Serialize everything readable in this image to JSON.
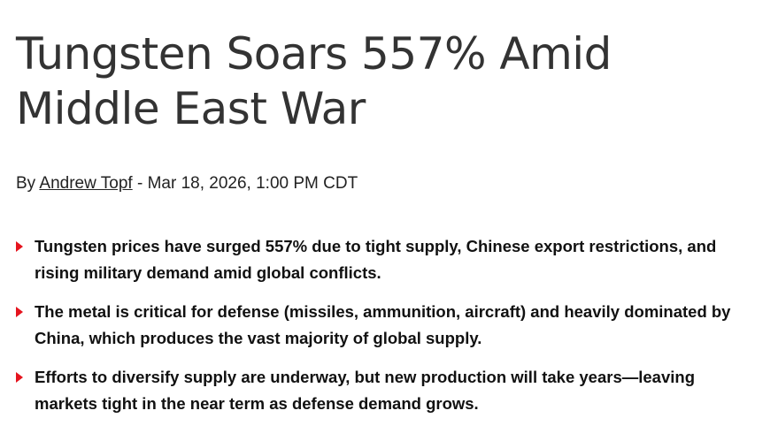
{
  "header": {
    "title": "Tungsten Soars 557% Amid Middle East War"
  },
  "byline": {
    "prefix": "By",
    "author": "Andrew Topf",
    "date": "- Mar 18, 2026, 1:00 PM CDT"
  },
  "bullets": [
    "Tungsten prices have surged 557% due to tight supply, Chinese export restrictions, and rising military demand amid global conflicts.",
    "The metal is critical for defense (missiles, ammunition, aircraft) and heavily dominated by China, which produces the vast majority of global supply.",
    "Efforts to diversify supply are underway, but new production will take years—leaving markets tight in the near term as defense demand grows."
  ]
}
